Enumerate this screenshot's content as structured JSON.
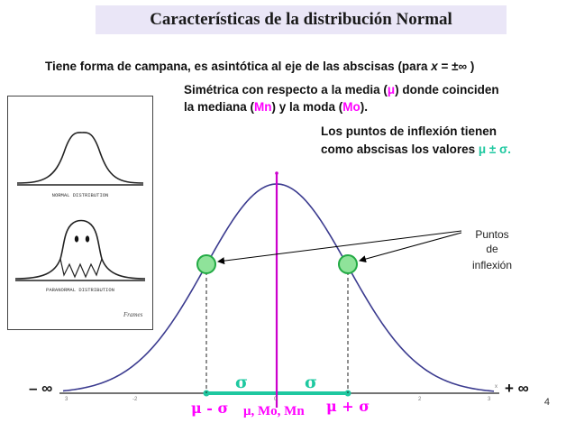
{
  "slide": {
    "title": "Características de la distribución Normal",
    "line1_prefix": "Tiene forma de campana, es asintótica al eje de las abscisas (para ",
    "line1_x": "x",
    "line1_eq": " = ±∞ )",
    "line2_a": "Simétrica con respecto a la media (",
    "line2_mu": "μ",
    "line2_b": ") donde coinciden",
    "line3_a": "la mediana (",
    "line3_mn": "Mn",
    "line3_b": ") y la moda (",
    "line3_mo": "Mo",
    "line3_c": ").",
    "line4": "Los puntos de inflexión tienen",
    "line5_a": "como abscisas los  valores ",
    "line5_b": "μ ± σ.",
    "page_number": "4"
  },
  "cartoon": {
    "caption_top": "NORMAL DISTRIBUTION",
    "caption_bottom": "PARANORMAL DISTRIBUTION",
    "signature": "Frames"
  },
  "diagram": {
    "callout": [
      "Puntos",
      "de",
      "inflexión"
    ],
    "minus_inf": "– ∞",
    "plus_inf": "+ ∞",
    "sigma_left": "σ",
    "sigma_right": "σ",
    "mu_minus_sigma": "μ - σ",
    "mu_label": "μ, ",
    "mo_mn": "Mo, Mn",
    "mu_plus_sigma": "μ + σ",
    "ticks": [
      "3",
      "-2",
      "0",
      "2",
      "3"
    ],
    "x_mark": "x",
    "colors": {
      "curve": "#3b3b8f",
      "mean_line": "#cc00cc",
      "sigma": "#1ec8a0",
      "point_fill": "#8fe39a",
      "point_stroke": "#22aa44"
    }
  }
}
